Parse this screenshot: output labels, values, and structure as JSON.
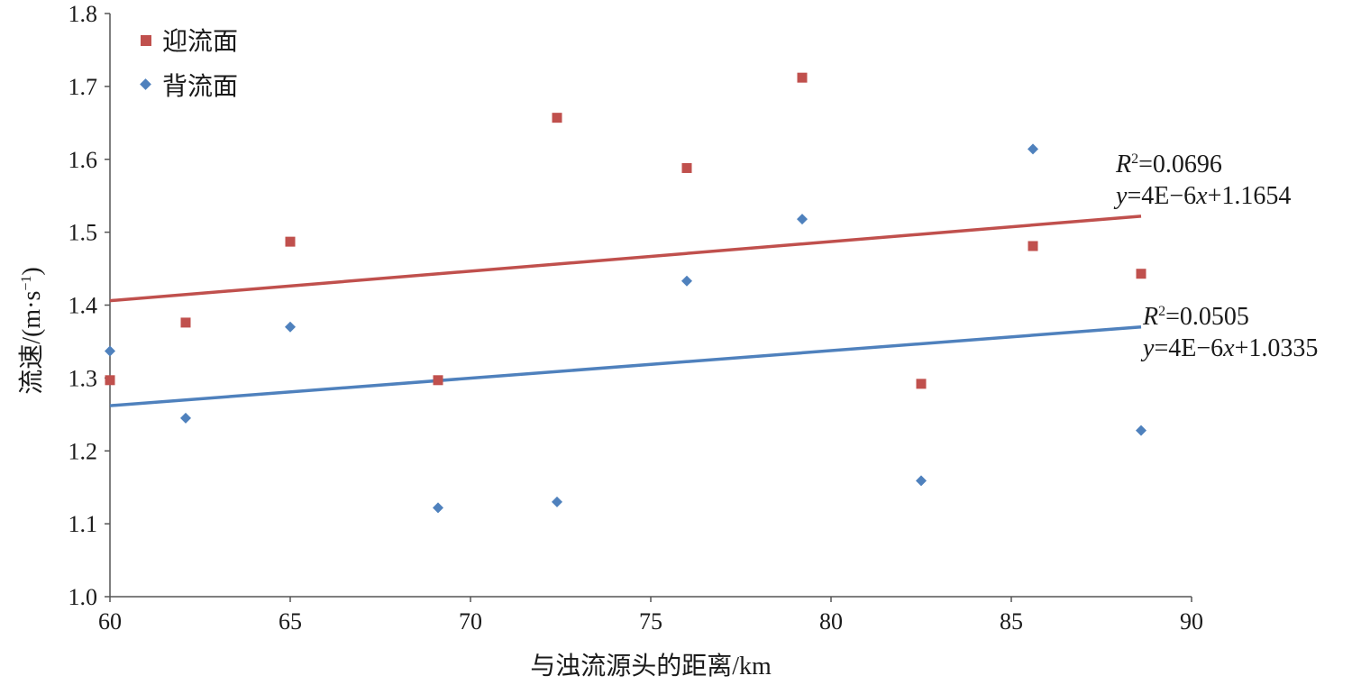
{
  "chart_data": {
    "type": "scatter",
    "xlabel": "与浊流源头的距离/km",
    "ylabel": "流速/(m·s",
    "ylabel_sup": "−1",
    "ylabel_close": ")",
    "xlim": [
      60,
      90
    ],
    "ylim": [
      1.0,
      1.8
    ],
    "x_ticks": [
      60,
      65,
      70,
      75,
      80,
      85,
      90
    ],
    "y_ticks": [
      "1.0",
      "1.1",
      "1.2",
      "1.3",
      "1.4",
      "1.5",
      "1.6",
      "1.7",
      "1.8"
    ],
    "grid": false,
    "legend_position": "top-left",
    "series": [
      {
        "name": "迎流面",
        "marker": "square",
        "color": "#c0504d",
        "x": [
          60.0,
          62.1,
          65.0,
          69.1,
          72.4,
          76.0,
          79.2,
          82.5,
          85.6,
          88.6
        ],
        "y": [
          1.297,
          1.376,
          1.487,
          1.297,
          1.657,
          1.588,
          1.712,
          1.292,
          1.481,
          1.443
        ],
        "trendline": {
          "x": [
            60,
            88.6
          ],
          "y": [
            1.406,
            1.522
          ],
          "color": "#c0504d",
          "r2_label": "=0.0696",
          "eq_prefix": "=4E−6",
          "eq_suffix": "+1.1654"
        }
      },
      {
        "name": "背流面",
        "marker": "diamond",
        "color": "#4f81bd",
        "x": [
          60.0,
          62.1,
          65.0,
          69.1,
          72.4,
          76.0,
          79.2,
          82.5,
          85.6,
          88.6
        ],
        "y": [
          1.337,
          1.245,
          1.37,
          1.122,
          1.13,
          1.433,
          1.518,
          1.159,
          1.614,
          1.228
        ],
        "trendline": {
          "x": [
            60,
            88.6
          ],
          "y": [
            1.262,
            1.37
          ],
          "color": "#4f81bd",
          "r2_label": "=0.0505",
          "eq_prefix": "=4E−6",
          "eq_suffix": "+1.0335"
        }
      }
    ]
  }
}
